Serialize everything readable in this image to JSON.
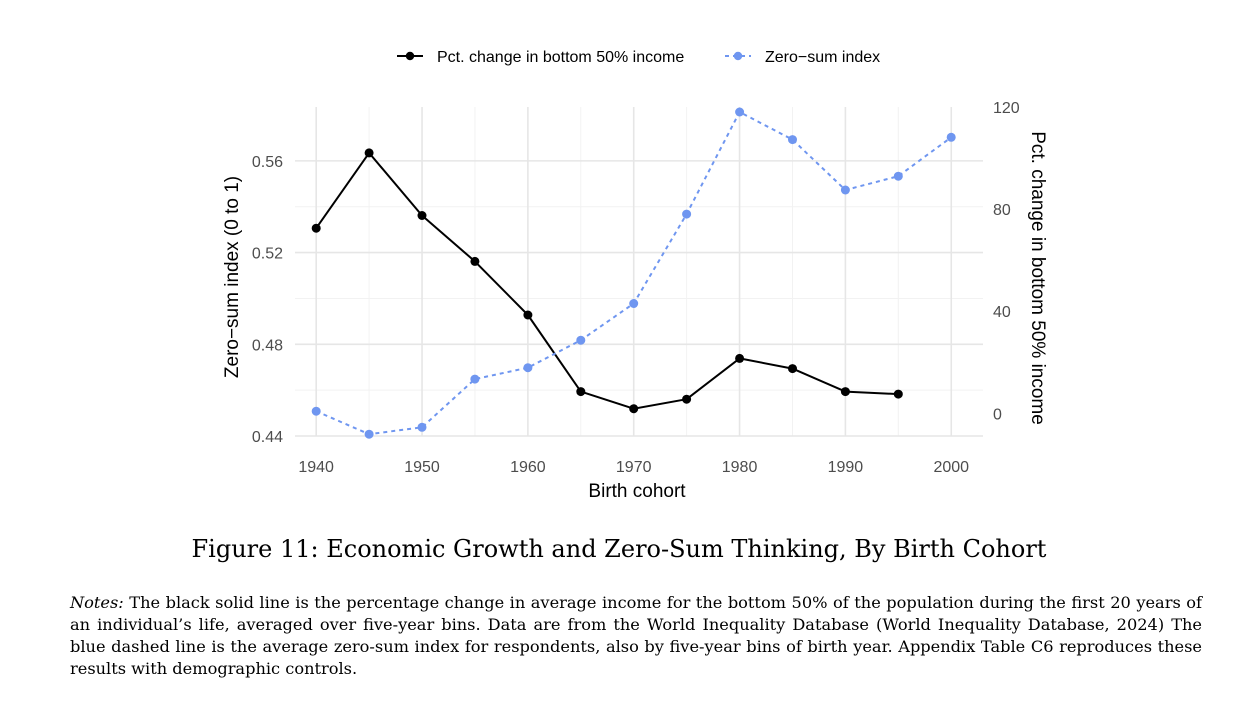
{
  "chart_data": {
    "type": "line",
    "legend": [
      "Pct. change in bottom 50% income",
      "Zero−sum index"
    ],
    "xlabel": "Birth cohort",
    "ylabel_left": "Zero−sum index (0 to 1)",
    "ylabel_right": "Pct. change in bottom 50% income",
    "x_ticks": [
      "1940",
      "1950",
      "1960",
      "1970",
      "1980",
      "1990",
      "2000"
    ],
    "y_left_ticks": [
      "0.44",
      "0.48",
      "0.52",
      "0.56"
    ],
    "y_right_ticks": [
      "0",
      "40",
      "80",
      "120"
    ],
    "xlim": [
      1938,
      2003
    ],
    "ylim_left": [
      0.44,
      0.5835
    ],
    "ylim_right": [
      -8.9,
      120
    ],
    "series": [
      {
        "name": "Pct. change in bottom 50% income",
        "axis": "right",
        "style": "solid",
        "color": "#000000",
        "x": [
          1940,
          1945,
          1950,
          1955,
          1960,
          1965,
          1970,
          1975,
          1980,
          1985,
          1990,
          1995
        ],
        "values": [
          72.5,
          102,
          77.5,
          59.5,
          38.5,
          8.5,
          1.8,
          5.5,
          21.5,
          17.5,
          8.5,
          7.5
        ]
      },
      {
        "name": "Zero−sum index",
        "axis": "left",
        "style": "dashed",
        "color": "#6f96f0",
        "x": [
          1940,
          1945,
          1950,
          1955,
          1960,
          1965,
          1970,
          1975,
          1980,
          1985,
          1990,
          1995,
          2000
        ],
        "values": [
          0.4508,
          0.4408,
          0.4438,
          0.4648,
          0.4698,
          0.4818,
          0.4978,
          0.5368,
          0.5813,
          0.5693,
          0.5473,
          0.5533,
          0.5703
        ]
      }
    ]
  },
  "caption": "Figure 11: Economic Growth and Zero-Sum Thinking, By Birth Cohort",
  "notes": {
    "label": "Notes:",
    "text": "The black solid line is the percentage change in average income for the bottom 50% of the population during the first 20 years of an individual’s life, averaged over five-year bins. Data are from the World Inequality Database (World Inequality Database, 2024) The blue dashed line is the average zero-sum index for respondents, also by five-year bins of birth year. Appendix Table C6 reproduces these results with demographic controls."
  }
}
